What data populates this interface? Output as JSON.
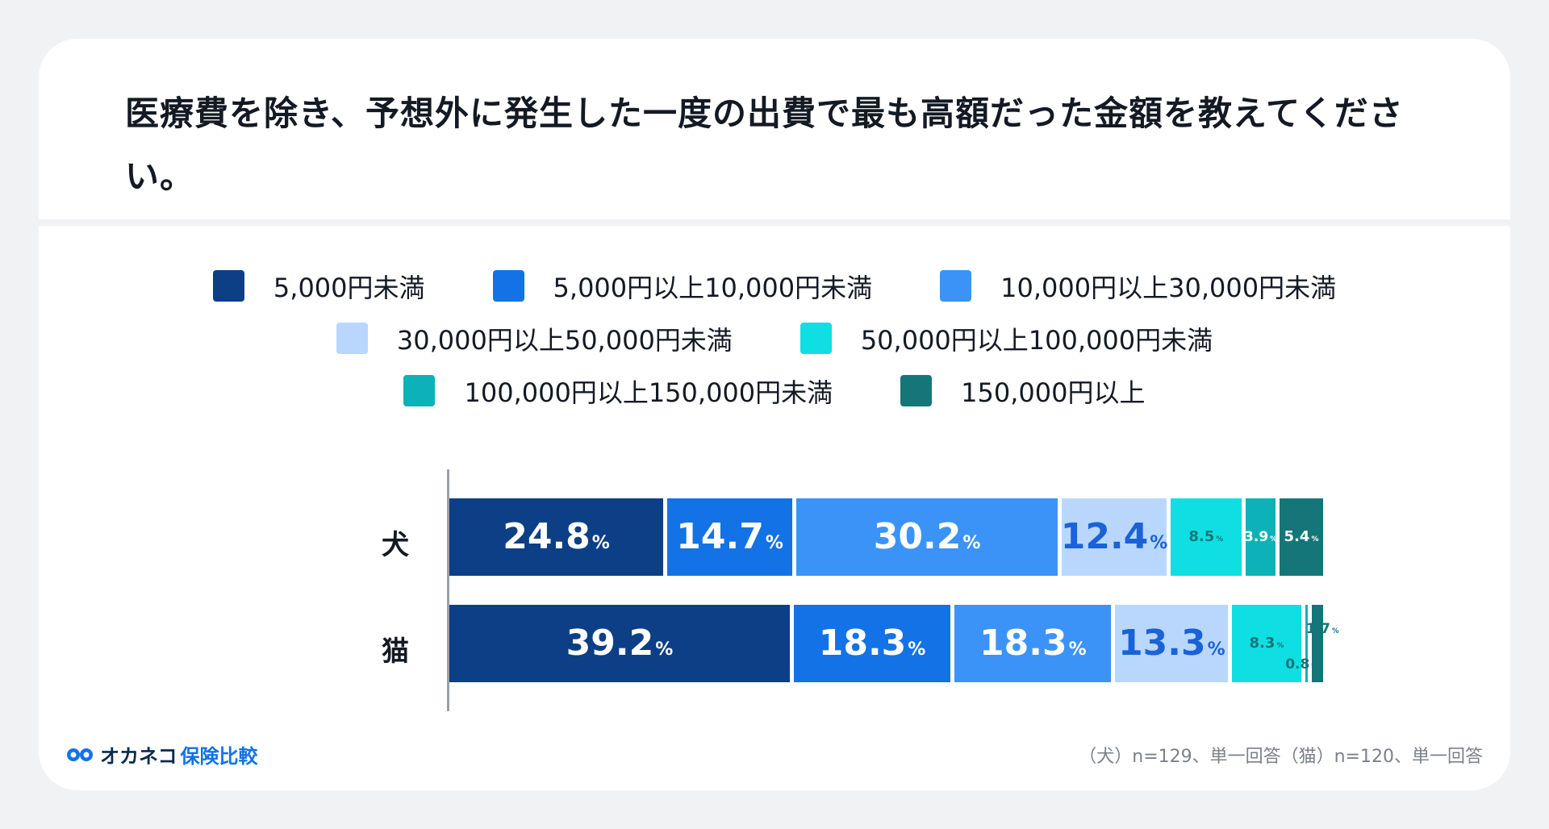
{
  "title": "医療費を除き、予想外に発生した一度の出費で最も高額だった金額を教えてください。",
  "footer": {
    "brand_main": "オカネコ",
    "brand_sub": "保険比較",
    "note": "（犬）n=129、単一回答（猫）n=120、単一回答"
  },
  "chart_data": {
    "type": "bar",
    "orientation": "horizontal",
    "stacked": true,
    "unit": "%",
    "categories": [
      "犬",
      "猫"
    ],
    "series": [
      {
        "name": "5,000円未満",
        "color": "#0d3f86",
        "values": [
          24.8,
          39.2
        ]
      },
      {
        "name": "5,000円以上10,000円未満",
        "color": "#1372e6",
        "values": [
          14.7,
          18.3
        ]
      },
      {
        "name": "10,000円以上30,000円未満",
        "color": "#3b93f7",
        "values": [
          30.2,
          18.3
        ]
      },
      {
        "name": "30,000円以上50,000円未満",
        "color": "#b9d7fc",
        "values": [
          12.4,
          13.3
        ]
      },
      {
        "name": "50,000円以上100,000円未満",
        "color": "#0fdfe2",
        "values": [
          8.5,
          8.3
        ]
      },
      {
        "name": "100,000円以上150,000円未満",
        "color": "#0cb2b7",
        "values": [
          3.9,
          0.8
        ]
      },
      {
        "name": "150,000円以上",
        "color": "#147678",
        "values": [
          5.4,
          1.7
        ]
      }
    ],
    "label_colors": [
      "#ffffff",
      "#ffffff",
      "#ffffff",
      "#1a62d6",
      "#147678",
      "#ffffff",
      "#ffffff"
    ],
    "xlim": [
      0,
      100
    ],
    "legend_position": "top"
  }
}
